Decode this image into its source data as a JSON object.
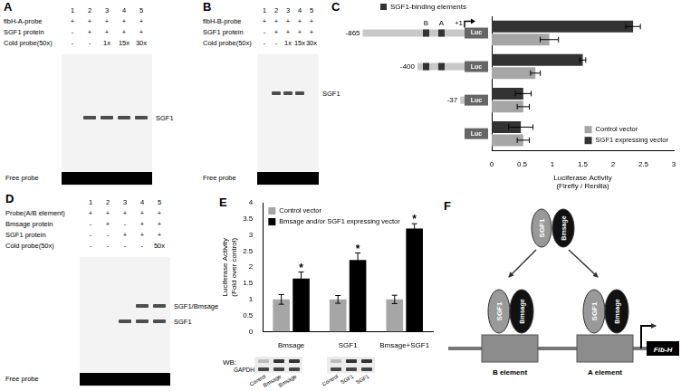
{
  "chart_data": [
    {
      "panel": "C",
      "type": "bar",
      "orientation": "horizontal",
      "categories": [
        "-865",
        "-400",
        "-37",
        null
      ],
      "construct_legend": "SGF1-binding elements",
      "element_labels": [
        "B",
        "A"
      ],
      "elements_per_construct": [
        2,
        2,
        0,
        0
      ],
      "tss_label": "+1",
      "reporter": "Luc",
      "x_label": [
        "Luciferase Activity",
        "(Firefly / Renilla)"
      ],
      "xlim": [
        0,
        3
      ],
      "xticks": [
        0,
        0.5,
        1,
        1.5,
        2,
        2.5,
        3
      ],
      "grid": false,
      "legend": "lower right",
      "tick_labels": "x",
      "series": [
        {
          "name": "Control vector",
          "color": "#a6a6a6",
          "values": [
            0.95,
            0.72,
            0.52,
            0.52
          ],
          "errors": [
            0.15,
            0.08,
            0.1,
            0.1
          ]
        },
        {
          "name": "SGF1 expressing vector",
          "color": "#333333",
          "values": [
            2.33,
            1.5,
            0.52,
            0.48
          ],
          "errors": [
            0.12,
            0.05,
            0.13,
            0.2
          ]
        }
      ]
    },
    {
      "panel": "E",
      "type": "bar",
      "categories": [
        "Bmsage",
        "SGF1",
        "Bmsage+SGF1"
      ],
      "y_label": [
        "Luciferase Activity",
        "(Fold over control)"
      ],
      "ylim": [
        0,
        4
      ],
      "yticks": [
        0,
        0.5,
        1,
        1.5,
        2,
        2.5,
        3,
        3.5,
        4
      ],
      "grid": false,
      "legend": "upper left",
      "series": [
        {
          "name": "Control vector",
          "color": "#a6a6a6",
          "values": [
            1,
            1,
            1
          ],
          "errors": [
            0.15,
            0.12,
            0.13
          ]
        },
        {
          "name": "Bmsage and/or SGF1 expressing vector",
          "color": "#000000",
          "values": [
            1.65,
            2.22,
            3.2
          ],
          "errors": [
            0.2,
            0.22,
            0.15
          ],
          "annotations": [
            "*",
            "*",
            "*"
          ]
        }
      ]
    }
  ],
  "gels": [
    {
      "panel": "A",
      "lanes": [
        1,
        2,
        3,
        4,
        5
      ],
      "rows": [
        {
          "label": "fibH-A-probe",
          "cells": [
            "+",
            "+",
            "+",
            "+",
            "+"
          ]
        },
        {
          "label": "SGF1 protein",
          "cells": [
            "-",
            "+",
            "+",
            "+",
            "+"
          ]
        },
        {
          "label": "Cold probe(50x)",
          "cells": [
            "-",
            "-",
            "1x",
            "15x",
            "30x"
          ]
        }
      ],
      "bands": [
        {
          "label": "SGF1",
          "lanes": [
            2,
            3,
            4,
            5
          ]
        }
      ],
      "free_probe": "Free probe"
    },
    {
      "panel": "B",
      "lanes": [
        1,
        2,
        3,
        4,
        5
      ],
      "rows": [
        {
          "label": "fibH-B-probe",
          "cells": [
            "+",
            "+",
            "+",
            "+",
            "+"
          ]
        },
        {
          "label": "SGF1 protein",
          "cells": [
            "-",
            "+",
            "+",
            "+",
            "+"
          ]
        },
        {
          "label": "Cold probe(50x)",
          "cells": [
            "-",
            "-",
            "1x",
            "15x",
            "30x"
          ]
        }
      ],
      "bands": [
        {
          "label": "SGF1",
          "lanes": [
            2,
            3,
            4
          ]
        }
      ],
      "free_probe": "Free probe"
    },
    {
      "panel": "D",
      "lanes": [
        1,
        2,
        3,
        4,
        5
      ],
      "rows": [
        {
          "label": "Probe(A/B element)",
          "cells": [
            "+",
            "+",
            "+",
            "+",
            "+"
          ]
        },
        {
          "label": "Bmsage protein",
          "cells": [
            "-",
            "+",
            "-",
            "+",
            "+"
          ]
        },
        {
          "label": "SGF1 protein",
          "cells": [
            "-",
            "-",
            "+",
            "+",
            "+"
          ]
        },
        {
          "label": "Cold probe(50x)",
          "cells": [
            "-",
            "-",
            "-",
            "-",
            "50x"
          ]
        }
      ],
      "bands": [
        {
          "label": "SGF1/Bmsage",
          "lanes": [
            4,
            5
          ]
        },
        {
          "label": "SGF1",
          "lanes": [
            3,
            4,
            5
          ]
        }
      ],
      "free_probe": "Free probe"
    }
  ],
  "western_blot": {
    "label": "WB:",
    "loading_control": "GAPDH",
    "groups": [
      [
        "Control",
        "Bmsage",
        "Bmsage"
      ],
      [
        "Control",
        "SGF1",
        "SGF1"
      ]
    ]
  },
  "diagram": {
    "panel": "F",
    "proteins": [
      {
        "name": "SGF1",
        "color": "#999999"
      },
      {
        "name": "Bmsage",
        "color": "#111111"
      }
    ],
    "elements": [
      "B element",
      "A element"
    ],
    "gene": "Fib-H"
  }
}
